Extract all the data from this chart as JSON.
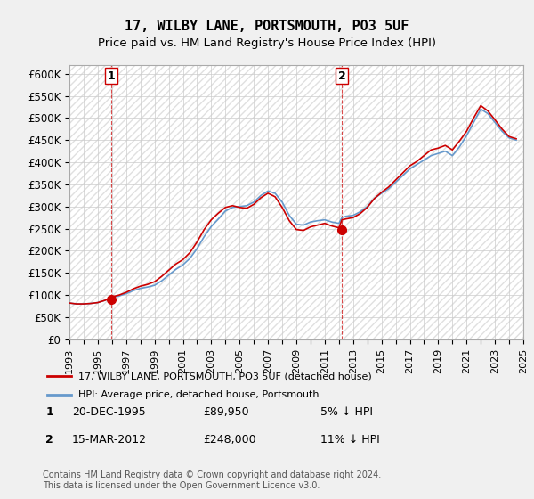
{
  "title": "17, WILBY LANE, PORTSMOUTH, PO3 5UF",
  "subtitle": "Price paid vs. HM Land Registry's House Price Index (HPI)",
  "ylabel": "",
  "ylim": [
    0,
    620000
  ],
  "yticks": [
    0,
    50000,
    100000,
    150000,
    200000,
    250000,
    300000,
    350000,
    400000,
    450000,
    500000,
    550000,
    600000
  ],
  "ytick_labels": [
    "£0",
    "£50K",
    "£100K",
    "£150K",
    "£200K",
    "£250K",
    "£300K",
    "£350K",
    "£400K",
    "£450K",
    "£500K",
    "£550K",
    "£600K"
  ],
  "bg_color": "#f0f0f0",
  "plot_bg_color": "#ffffff",
  "hpi_color": "#6699cc",
  "price_color": "#cc0000",
  "vline_color": "#cc0000",
  "marker_color": "#cc0000",
  "transaction1": {
    "date": 1995.97,
    "price": 89950,
    "label": "1"
  },
  "transaction2": {
    "date": 2012.21,
    "price": 248000,
    "label": "2"
  },
  "legend1": "17, WILBY LANE, PORTSMOUTH, PO3 5UF (detached house)",
  "legend2": "HPI: Average price, detached house, Portsmouth",
  "note1_label": "1",
  "note1_date": "20-DEC-1995",
  "note1_price": "£89,950",
  "note1_hpi": "5% ↓ HPI",
  "note2_label": "2",
  "note2_date": "15-MAR-2012",
  "note2_price": "£248,000",
  "note2_hpi": "11% ↓ HPI",
  "footer": "Contains HM Land Registry data © Crown copyright and database right 2024.\nThis data is licensed under the Open Government Licence v3.0.",
  "hpi_data": {
    "years": [
      1993.0,
      1993.5,
      1994.0,
      1994.5,
      1995.0,
      1995.5,
      1995.97,
      1996.0,
      1996.5,
      1997.0,
      1997.5,
      1998.0,
      1998.5,
      1999.0,
      1999.5,
      2000.0,
      2000.5,
      2001.0,
      2001.5,
      2002.0,
      2002.5,
      2003.0,
      2003.5,
      2004.0,
      2004.5,
      2005.0,
      2005.5,
      2006.0,
      2006.5,
      2007.0,
      2007.5,
      2008.0,
      2008.5,
      2009.0,
      2009.5,
      2010.0,
      2010.5,
      2011.0,
      2011.5,
      2012.0,
      2012.21,
      2012.5,
      2013.0,
      2013.5,
      2014.0,
      2014.5,
      2015.0,
      2015.5,
      2016.0,
      2016.5,
      2017.0,
      2017.5,
      2018.0,
      2018.5,
      2019.0,
      2019.5,
      2020.0,
      2020.5,
      2021.0,
      2021.5,
      2022.0,
      2022.5,
      2023.0,
      2023.5,
      2024.0,
      2024.5
    ],
    "values": [
      82000,
      80000,
      80000,
      81000,
      83000,
      88000,
      94500,
      95000,
      98000,
      103000,
      110000,
      115000,
      118000,
      122000,
      132000,
      145000,
      158000,
      168000,
      183000,
      205000,
      232000,
      255000,
      272000,
      290000,
      298000,
      300000,
      302000,
      310000,
      325000,
      335000,
      330000,
      310000,
      280000,
      260000,
      258000,
      265000,
      268000,
      270000,
      265000,
      262000,
      275000,
      278000,
      280000,
      288000,
      300000,
      318000,
      330000,
      340000,
      355000,
      370000,
      385000,
      395000,
      405000,
      415000,
      420000,
      425000,
      415000,
      435000,
      460000,
      490000,
      520000,
      510000,
      490000,
      470000,
      455000,
      450000
    ]
  },
  "price_data": {
    "years": [
      1993.0,
      1993.5,
      1994.0,
      1994.5,
      1995.0,
      1995.5,
      1995.97,
      1996.0,
      1996.5,
      1997.0,
      1997.5,
      1998.0,
      1998.5,
      1999.0,
      1999.5,
      2000.0,
      2000.5,
      2001.0,
      2001.5,
      2002.0,
      2002.5,
      2003.0,
      2003.5,
      2004.0,
      2004.5,
      2005.0,
      2005.5,
      2006.0,
      2006.5,
      2007.0,
      2007.5,
      2008.0,
      2008.5,
      2009.0,
      2009.5,
      2010.0,
      2010.5,
      2011.0,
      2011.5,
      2012.0,
      2012.21,
      2012.5,
      2013.0,
      2013.5,
      2014.0,
      2014.5,
      2015.0,
      2015.5,
      2016.0,
      2016.5,
      2017.0,
      2017.5,
      2018.0,
      2018.5,
      2019.0,
      2019.5,
      2020.0,
      2020.5,
      2021.0,
      2021.5,
      2022.0,
      2022.5,
      2023.0,
      2023.5,
      2024.0,
      2024.5
    ],
    "values": [
      82000,
      80000,
      80000,
      81000,
      83000,
      88000,
      94500,
      96000,
      100000,
      106000,
      114000,
      120000,
      124000,
      130000,
      142000,
      156000,
      170000,
      180000,
      196000,
      220000,
      248000,
      270000,
      285000,
      298000,
      302000,
      298000,
      296000,
      305000,
      320000,
      330000,
      322000,
      298000,
      268000,
      248000,
      246000,
      254000,
      258000,
      262000,
      256000,
      252000,
      270000,
      272000,
      275000,
      284000,
      298000,
      318000,
      332000,
      344000,
      360000,
      376000,
      392000,
      402000,
      415000,
      428000,
      432000,
      438000,
      428000,
      448000,
      470000,
      500000,
      528000,
      516000,
      496000,
      475000,
      458000,
      453000
    ]
  }
}
